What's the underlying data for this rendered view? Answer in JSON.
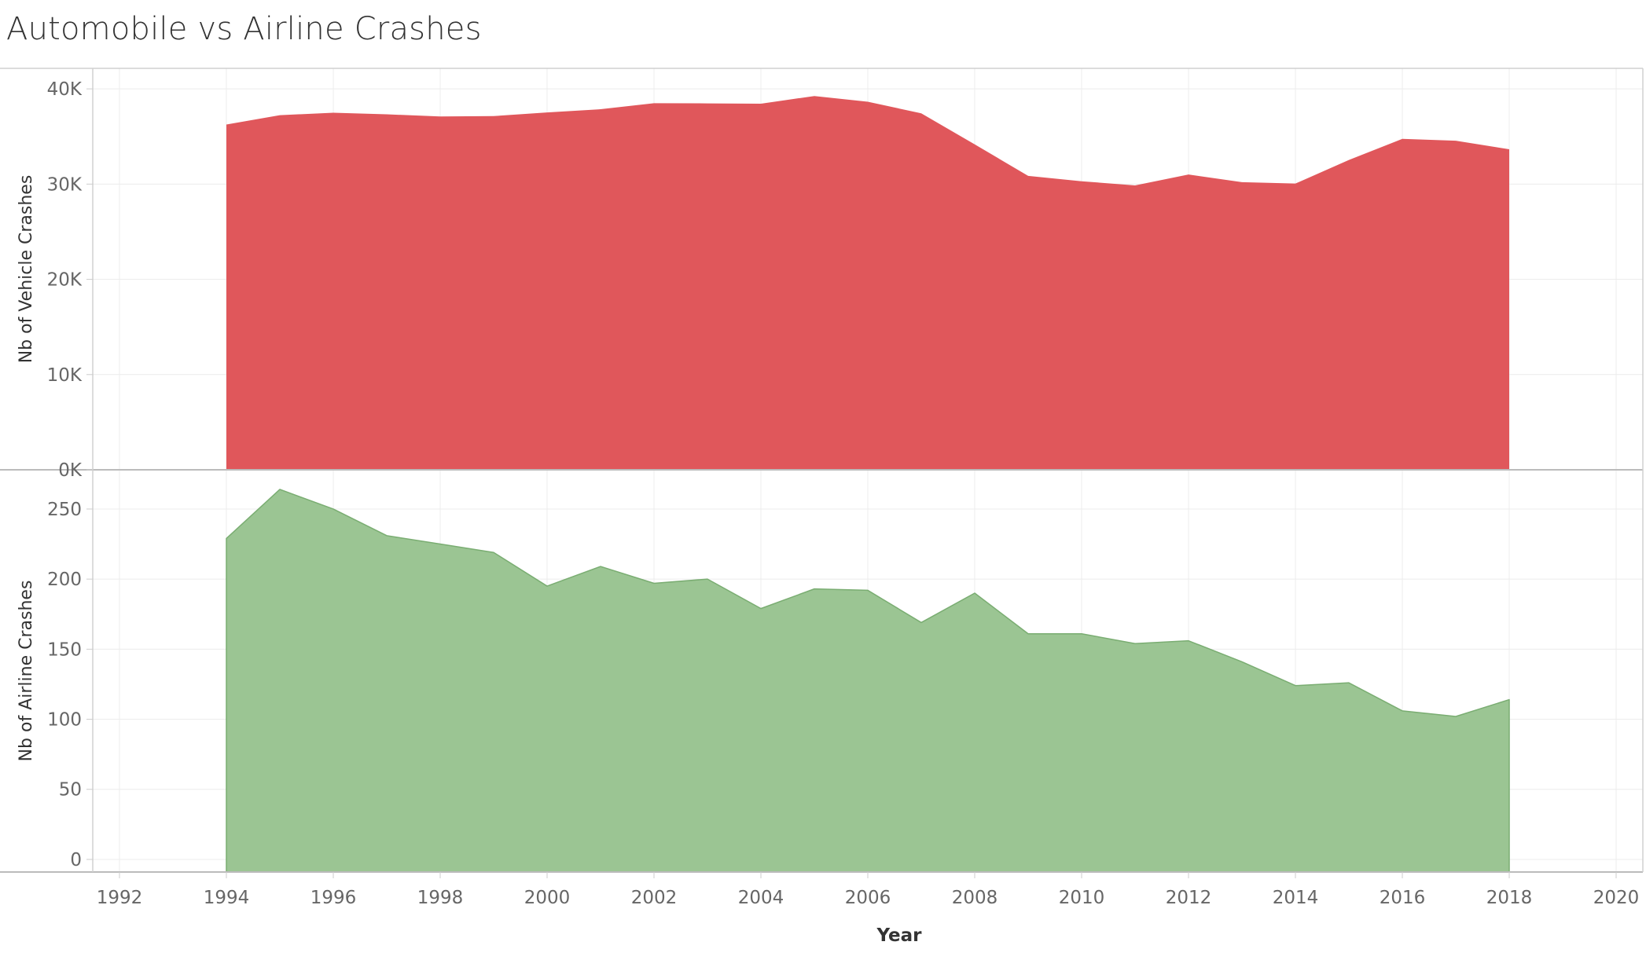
{
  "title": "Automobile vs Airline Crashes",
  "colors": {
    "vehicle_fill": "#e0575b",
    "airline_fill": "#9bc593",
    "airline_stroke": "#7aad72",
    "grid": "#ececec",
    "border": "#d0d0d0"
  },
  "chart_data": [
    {
      "type": "area",
      "title": "Automobile vs Airline Crashes",
      "xlabel": "Year",
      "ylabel": "Nb of Vehicle Crashes",
      "xlim": [
        1991.5,
        2020.5
      ],
      "ylim": [
        0,
        41000
      ],
      "x_ticks": [
        1992,
        1994,
        1996,
        1998,
        2000,
        2002,
        2004,
        2006,
        2008,
        2010,
        2012,
        2014,
        2016,
        2018,
        2020
      ],
      "y_ticks": [
        0,
        10000,
        20000,
        30000,
        40000
      ],
      "y_tick_labels": [
        "0K",
        "10K",
        "20K",
        "30K",
        "40K"
      ],
      "grid": true,
      "x": [
        1994,
        1995,
        1996,
        1997,
        1998,
        1999,
        2000,
        2001,
        2002,
        2003,
        2004,
        2005,
        2006,
        2007,
        2008,
        2009,
        2010,
        2011,
        2012,
        2013,
        2014,
        2015,
        2016,
        2017,
        2018
      ],
      "series": [
        {
          "values": [
            36254,
            37241,
            37494,
            37324,
            37107,
            37140,
            37526,
            37862,
            38491,
            38477,
            38444,
            39252,
            38648,
            37435,
            34172,
            30862,
            30296,
            29867,
            31006,
            30202,
            30056,
            32539,
            34748,
            34560,
            33654
          ]
        }
      ]
    },
    {
      "type": "area",
      "xlabel": "Year",
      "ylabel": "Nb of Airline Crashes",
      "xlim": [
        1991.5,
        2020.5
      ],
      "ylim": [
        -9,
        278
      ],
      "x_ticks": [
        1992,
        1994,
        1996,
        1998,
        2000,
        2002,
        2004,
        2006,
        2008,
        2010,
        2012,
        2014,
        2016,
        2018,
        2020
      ],
      "y_ticks": [
        0,
        50,
        100,
        150,
        200,
        250
      ],
      "y_tick_labels": [
        "0",
        "50",
        "100",
        "150",
        "200",
        "250"
      ],
      "grid": true,
      "x": [
        1994,
        1995,
        1996,
        1997,
        1998,
        1999,
        2000,
        2001,
        2002,
        2003,
        2004,
        2005,
        2006,
        2007,
        2008,
        2009,
        2010,
        2011,
        2012,
        2013,
        2014,
        2015,
        2016,
        2017,
        2018
      ],
      "series": [
        {
          "values": [
            229,
            264,
            250,
            231,
            225,
            219,
            195,
            209,
            197,
            200,
            179,
            193,
            192,
            169,
            190,
            161,
            161,
            154,
            156,
            141,
            124,
            126,
            106,
            102,
            114
          ]
        }
      ]
    }
  ]
}
